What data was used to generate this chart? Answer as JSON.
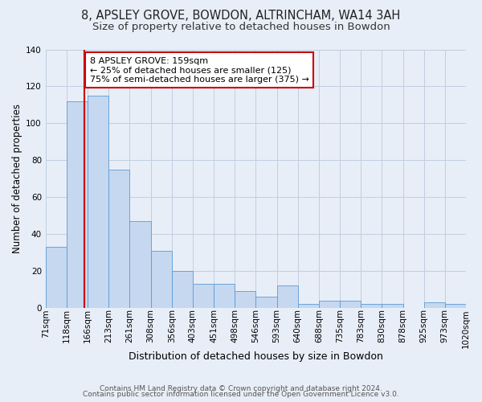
{
  "title1": "8, APSLEY GROVE, BOWDON, ALTRINCHAM, WA14 3AH",
  "title2": "Size of property relative to detached houses in Bowdon",
  "xlabel": "Distribution of detached houses by size in Bowdon",
  "ylabel": "Number of detached properties",
  "bin_labels": [
    "71sqm",
    "118sqm",
    "166sqm",
    "213sqm",
    "261sqm",
    "308sqm",
    "356sqm",
    "403sqm",
    "451sqm",
    "498sqm",
    "546sqm",
    "593sqm",
    "640sqm",
    "688sqm",
    "735sqm",
    "783sqm",
    "830sqm",
    "878sqm",
    "925sqm",
    "973sqm",
    "1020sqm"
  ],
  "counts": [
    33,
    112,
    115,
    75,
    47,
    31,
    20,
    13,
    13,
    9,
    6,
    12,
    2,
    4,
    4,
    2,
    2,
    0,
    3,
    2
  ],
  "bar_color": "#c5d8f0",
  "bar_edge_color": "#5b9bd5",
  "background_color": "#e8eef7",
  "red_line_after_bar": 1,
  "annotation_line1": "8 APSLEY GROVE: 159sqm",
  "annotation_line2": "← 25% of detached houses are smaller (125)",
  "annotation_line3": "75% of semi-detached houses are larger (375) →",
  "annotation_box_color": "#ffffff",
  "annotation_box_edge_color": "#cc0000",
  "annotation_text_color": "#000000",
  "red_line_color": "#cc0000",
  "ylim": [
    0,
    140
  ],
  "yticks": [
    0,
    20,
    40,
    60,
    80,
    100,
    120,
    140
  ],
  "footer1": "Contains HM Land Registry data © Crown copyright and database right 2024.",
  "footer2": "Contains public sector information licensed under the Open Government Licence v3.0.",
  "grid_color": "#c0cfe0",
  "title1_fontsize": 10.5,
  "title2_fontsize": 9.5,
  "xlabel_fontsize": 9,
  "ylabel_fontsize": 8.5,
  "tick_fontsize": 7.5,
  "annotation_fontsize": 8,
  "footer_fontsize": 6.5
}
